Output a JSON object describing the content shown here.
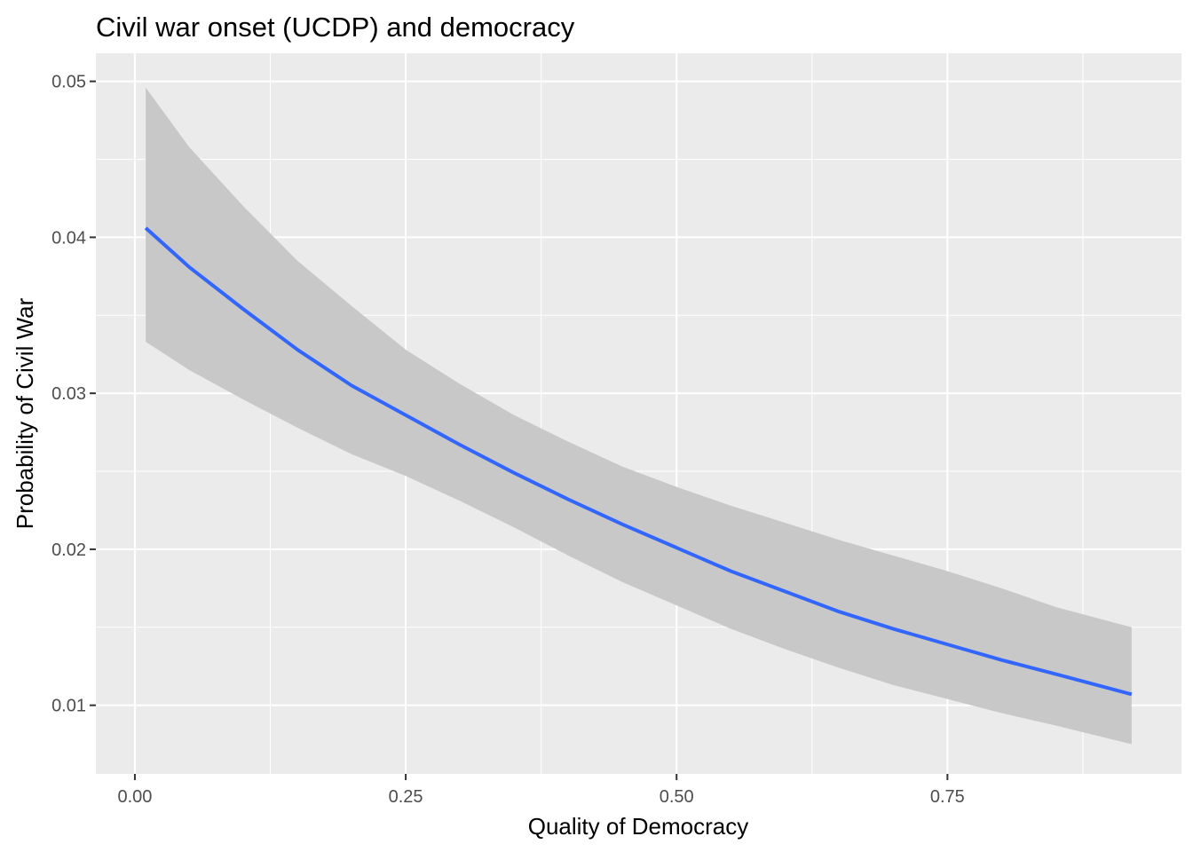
{
  "chart_data": {
    "type": "line",
    "title": "Civil war onset (UCDP) and democracy",
    "xlabel": "Quality of Democracy",
    "ylabel": "Probability of Civil War",
    "xlim": [
      -0.036,
      0.966
    ],
    "ylim": [
      0.0056,
      0.0518
    ],
    "x_ticks": [
      0.0,
      0.25,
      0.5,
      0.75
    ],
    "x_tick_labels": [
      "0.00",
      "0.25",
      "0.50",
      "0.75"
    ],
    "y_ticks": [
      0.01,
      0.02,
      0.03,
      0.04,
      0.05
    ],
    "y_tick_labels": [
      "0.01",
      "0.02",
      "0.03",
      "0.04",
      "0.05"
    ],
    "grid": true,
    "legend": "none",
    "colors": {
      "panel_background": "#ebebeb",
      "grid": "#ffffff",
      "line": "#3366ff",
      "ribbon": "#c8c8c8"
    },
    "series": [
      {
        "x": [
          0.01,
          0.05,
          0.1,
          0.15,
          0.2,
          0.25,
          0.3,
          0.35,
          0.4,
          0.45,
          0.5,
          0.55,
          0.6,
          0.65,
          0.7,
          0.75,
          0.8,
          0.85,
          0.92
        ],
        "fit": [
          0.0406,
          0.0381,
          0.0354,
          0.0328,
          0.0305,
          0.0286,
          0.0267,
          0.0249,
          0.0232,
          0.0216,
          0.0201,
          0.0186,
          0.0173,
          0.016,
          0.0149,
          0.0139,
          0.0129,
          0.012,
          0.0107
        ],
        "lower": [
          0.0333,
          0.0315,
          0.0296,
          0.0278,
          0.0261,
          0.0247,
          0.0231,
          0.0214,
          0.0196,
          0.0179,
          0.0164,
          0.0149,
          0.0136,
          0.0124,
          0.0113,
          0.0104,
          0.0095,
          0.0087,
          0.0075
        ],
        "upper": [
          0.0496,
          0.0458,
          0.042,
          0.0385,
          0.0356,
          0.0328,
          0.0306,
          0.0286,
          0.0269,
          0.0253,
          0.024,
          0.0228,
          0.0217,
          0.0206,
          0.0196,
          0.0186,
          0.0175,
          0.0163,
          0.015
        ]
      }
    ]
  }
}
